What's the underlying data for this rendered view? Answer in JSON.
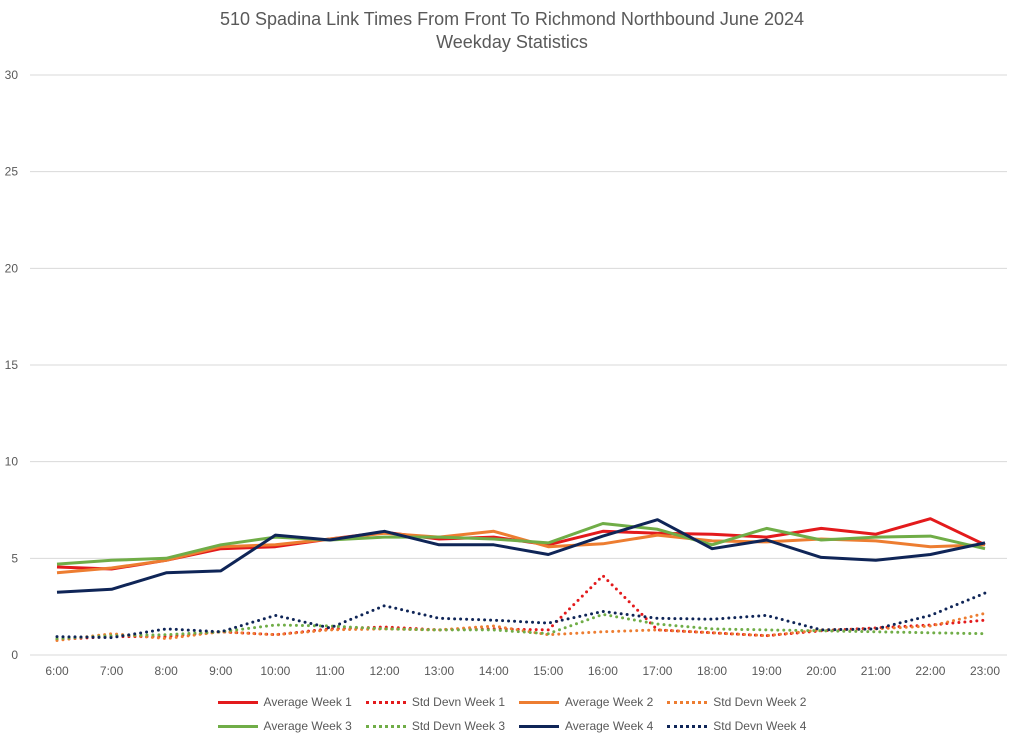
{
  "chart_data": {
    "type": "line",
    "title": "510 Spadina Link Times From Front To Richmond Northbound June 2024",
    "subtitle": "Weekday Statistics",
    "xlabel": "",
    "ylabel": "",
    "ylim": [
      0,
      30
    ],
    "yticks": [
      "0",
      "5",
      "10",
      "15",
      "20",
      "25",
      "30"
    ],
    "grid": true,
    "legend_position": "bottom",
    "categories": [
      "6:00",
      "7:00",
      "8:00",
      "9:00",
      "10:00",
      "11:00",
      "12:00",
      "13:00",
      "14:00",
      "15:00",
      "16:00",
      "17:00",
      "18:00",
      "19:00",
      "20:00",
      "21:00",
      "22:00",
      "23:00"
    ],
    "series": [
      {
        "name": "Average Week 1",
        "color": "#e31a1c",
        "style": "solid",
        "values": [
          4.55,
          4.45,
          4.9,
          5.5,
          5.6,
          6.0,
          6.35,
          6.0,
          6.1,
          5.7,
          6.4,
          6.3,
          6.25,
          6.1,
          6.55,
          6.25,
          7.05,
          5.7
        ]
      },
      {
        "name": "Std Devn Week 1",
        "color": "#e31a1c",
        "style": "dotted",
        "values": [
          0.8,
          0.95,
          0.95,
          1.2,
          1.05,
          1.35,
          1.45,
          1.3,
          1.35,
          1.3,
          4.1,
          1.3,
          1.15,
          1.0,
          1.25,
          1.4,
          1.55,
          1.8
        ]
      },
      {
        "name": "Average Week 2",
        "color": "#ed7d31",
        "style": "solid",
        "values": [
          4.25,
          4.5,
          4.9,
          5.6,
          5.7,
          6.0,
          6.3,
          6.1,
          6.4,
          5.6,
          5.75,
          6.2,
          5.9,
          5.85,
          6.0,
          5.9,
          5.6,
          5.7
        ]
      },
      {
        "name": "Std Devn Week 2",
        "color": "#ed7d31",
        "style": "dotted",
        "values": [
          0.75,
          1.1,
          0.85,
          1.2,
          1.05,
          1.3,
          1.35,
          1.3,
          1.5,
          1.05,
          1.2,
          1.3,
          1.15,
          1.0,
          1.3,
          1.35,
          1.5,
          2.15
        ]
      },
      {
        "name": "Average Week 3",
        "color": "#70ad47",
        "style": "solid",
        "values": [
          4.7,
          4.9,
          5.0,
          5.7,
          6.1,
          5.95,
          6.1,
          6.1,
          6.0,
          5.8,
          6.8,
          6.5,
          5.7,
          6.55,
          5.95,
          6.1,
          6.15,
          5.5
        ]
      },
      {
        "name": "Std Devn Week 3",
        "color": "#70ad47",
        "style": "dotted",
        "values": [
          0.85,
          1.0,
          1.05,
          1.2,
          1.55,
          1.5,
          1.35,
          1.3,
          1.3,
          1.1,
          2.1,
          1.6,
          1.35,
          1.3,
          1.25,
          1.2,
          1.15,
          1.1
        ]
      },
      {
        "name": "Average Week 4",
        "color": "#0f2557",
        "style": "solid",
        "values": [
          3.25,
          3.4,
          4.25,
          4.35,
          6.2,
          5.95,
          6.4,
          5.7,
          5.7,
          5.2,
          6.15,
          7.0,
          5.5,
          5.95,
          5.05,
          4.9,
          5.2,
          5.8
        ]
      },
      {
        "name": "Std Devn Week 4",
        "color": "#0f2557",
        "style": "dotted",
        "values": [
          0.95,
          0.9,
          1.35,
          1.2,
          2.05,
          1.4,
          2.55,
          1.9,
          1.8,
          1.65,
          2.25,
          1.9,
          1.85,
          2.05,
          1.3,
          1.35,
          2.05,
          3.2
        ]
      }
    ]
  }
}
